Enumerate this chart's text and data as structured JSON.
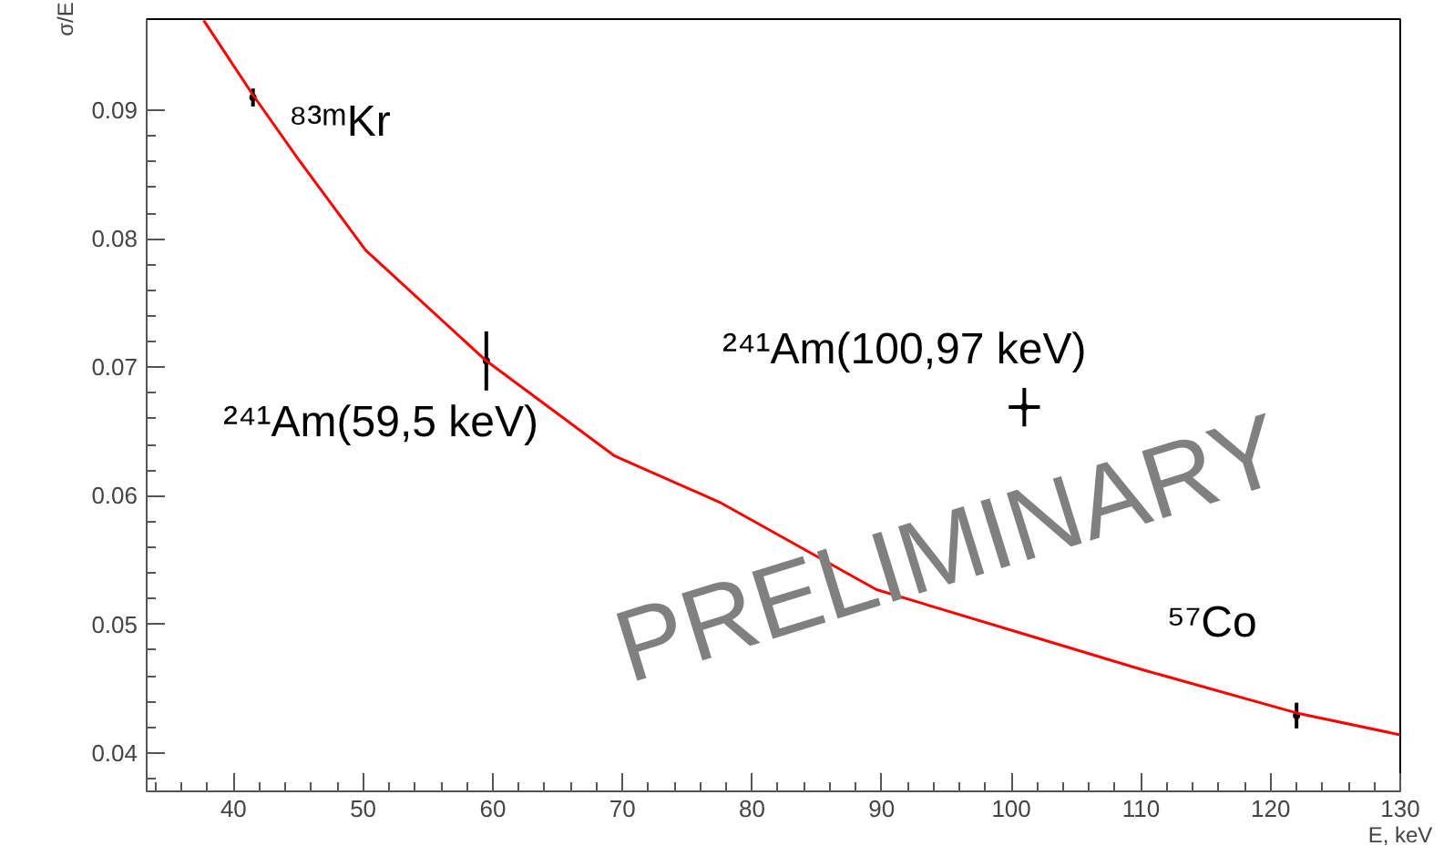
{
  "chart_data": {
    "type": "scatter",
    "xlabel": "E, keV",
    "ylabel": "σ/E",
    "xlim": [
      33.3,
      130
    ],
    "ylim": [
      0.037,
      0.0971
    ],
    "xticks": [
      40,
      50,
      60,
      70,
      80,
      90,
      100,
      110,
      120,
      130
    ],
    "yticks": [
      0.04,
      0.05,
      0.06,
      0.07,
      0.08,
      0.09
    ],
    "grid": false,
    "series": [
      {
        "color": "#000000",
        "marker": "circle",
        "x": [
          41.5,
          59.5,
          101,
          122
        ],
        "values": [
          0.091,
          0.0705,
          0.0669,
          0.0429
        ],
        "errors": [
          0.0007,
          0.0023,
          0.0015,
          0.001
        ],
        "xerrors": [
          null,
          null,
          1.2,
          null
        ]
      },
      {
        "type": "line",
        "color": "#ff0000",
        "line_style": "solid",
        "x": [
          37.7,
          41.5,
          45,
          50.2,
          59.5,
          69.4,
          77.5,
          89.6,
          100.8,
          110,
          122,
          130
        ],
        "values": [
          0.097,
          0.0912,
          0.0862,
          0.0791,
          0.0705,
          0.0631,
          0.0595,
          0.0527,
          0.0493,
          0.0465,
          0.0431,
          0.0414
        ]
      }
    ],
    "annotations": [
      "⁸³ᵐKr",
      "²⁴¹Am(59,5 keV)",
      "²⁴¹Am(100,97 keV)",
      "⁵⁷Co",
      "PRELIMINARY"
    ]
  }
}
